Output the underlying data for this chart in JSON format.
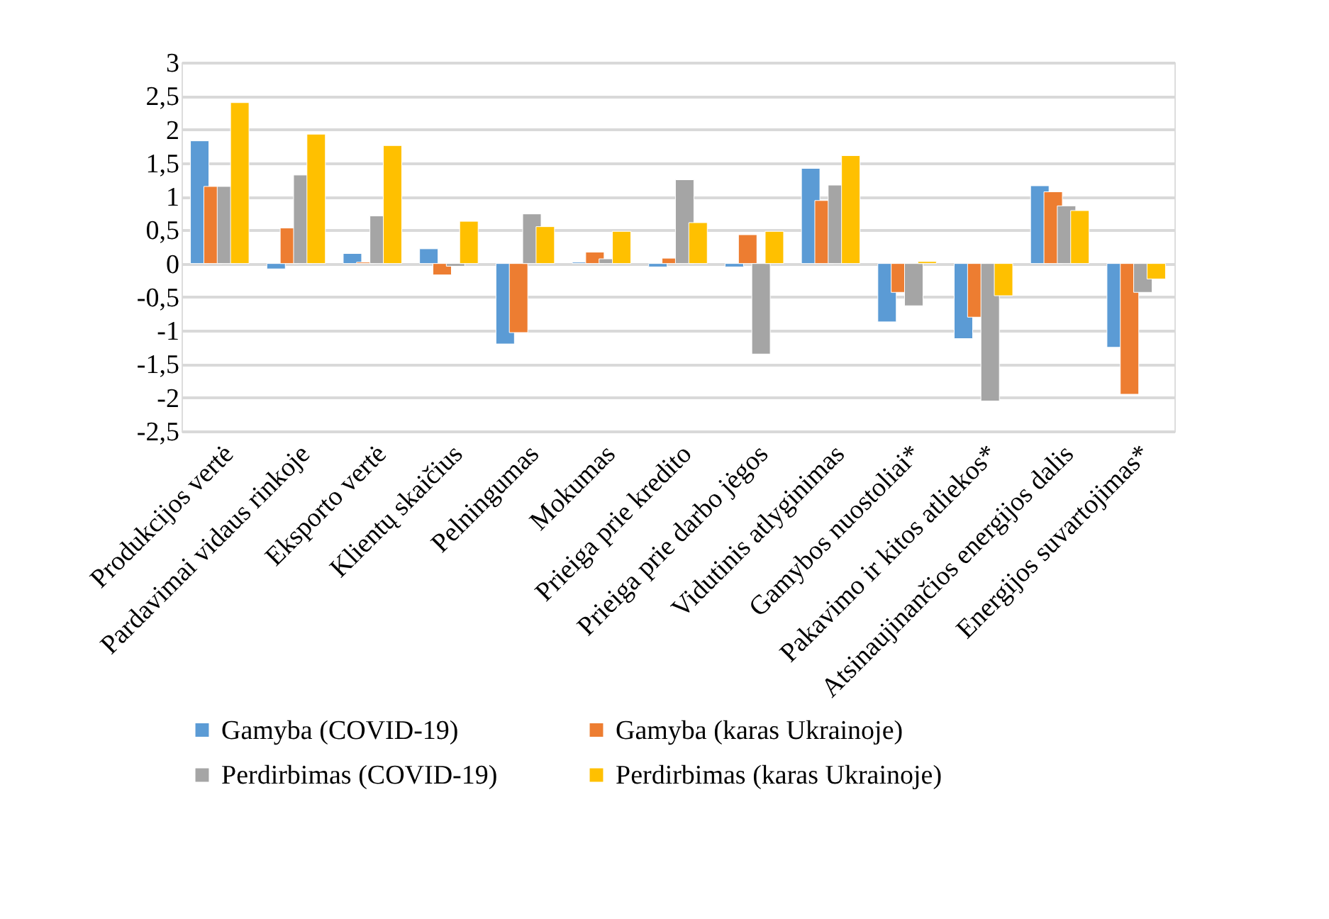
{
  "chart_data": {
    "type": "bar",
    "categories": [
      "Produkcijos vertė",
      "Pardavimai vidaus rinkoje",
      "Eksporto vertė",
      "Klientų skaičius",
      "Pelningumas",
      "Mokumas",
      "Prieiga prie kredito",
      "Prieiga prie darbo jėgos",
      "Vidutinis atlyginimas",
      "Gamybos nuostoliai*",
      "Pakavimo ir kitos atliekos*",
      "Atsinaujinančios energijos dalis",
      "Energijos suvartojimas*"
    ],
    "series": [
      {
        "name": "Gamyba (COVID-19)",
        "color": "#5b9bd5",
        "values": [
          1.83,
          -0.08,
          0.15,
          0.22,
          -1.2,
          0.02,
          -0.05,
          -0.05,
          1.42,
          -0.87,
          -1.12,
          1.16,
          -1.25
        ]
      },
      {
        "name": "Gamyba (karas Ukrainoje)",
        "color": "#ed7d31",
        "values": [
          1.15,
          0.53,
          0.02,
          -0.17,
          -1.03,
          0.17,
          0.08,
          0.43,
          0.94,
          -0.43,
          -0.8,
          1.07,
          -1.95
        ]
      },
      {
        "name": "Perdirbimas (COVID-19)",
        "color": "#a5a5a5",
        "values": [
          1.15,
          1.32,
          0.71,
          -0.04,
          0.74,
          0.07,
          1.25,
          -1.35,
          1.17,
          -0.63,
          -2.05,
          0.86,
          -0.43
        ]
      },
      {
        "name": "Perdirbimas (karas Ukrainoje)",
        "color": "#ffc000",
        "values": [
          2.4,
          1.93,
          1.76,
          0.63,
          0.55,
          0.48,
          0.61,
          0.48,
          1.61,
          0.03,
          -0.48,
          0.79,
          -0.23
        ]
      }
    ],
    "ylim": [
      -2.5,
      3
    ],
    "yticks": [
      {
        "value": -2.5,
        "label": "-2,5"
      },
      -2,
      {
        "value": -1.5,
        "label": "-1,5"
      },
      -1,
      {
        "value": -0.5,
        "label": "-0,5"
      },
      0,
      {
        "value": 0.5,
        "label": "0,5"
      },
      1,
      {
        "value": 1.5,
        "label": "1,5"
      },
      2,
      {
        "value": 2.5,
        "label": "2,5"
      },
      3
    ],
    "grid": "y",
    "legend": "bottom"
  }
}
